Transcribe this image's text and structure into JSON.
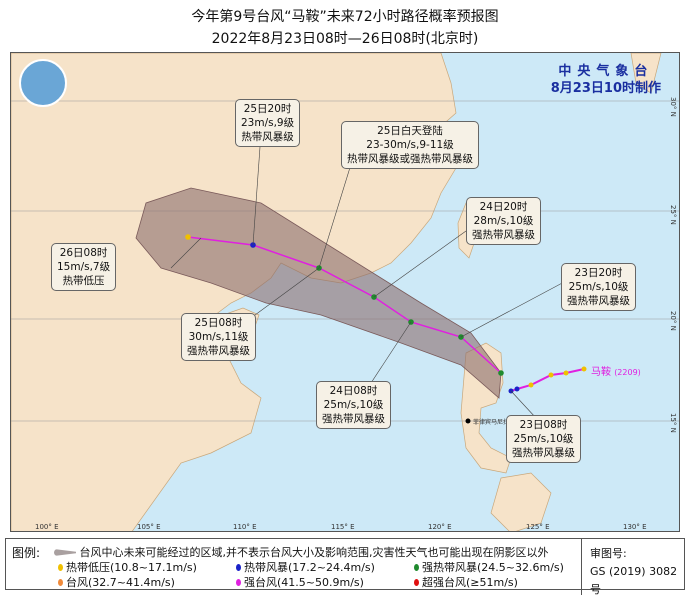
{
  "title": "今年第9号台风“马鞍”未来72小时路径概率预报图",
  "subtitle": "2022年8月23日08时—26日08时(北京时)",
  "agency": {
    "name": "中央气象台",
    "issued": "8月23日10时制作"
  },
  "storm": {
    "name": "马鞍",
    "id": "(2209)"
  },
  "axes": {
    "lon": [
      "100° E",
      "105° E",
      "110° E",
      "115° E",
      "120° E",
      "125° E",
      "130° E"
    ],
    "lat": [
      "30° N",
      "25° N",
      "20° N",
      "15° N"
    ]
  },
  "forecast_points": [
    {
      "time": "23日08时",
      "wind": "25m/s,10级",
      "category": "强热带风暴级",
      "color": "#1f8a2e"
    },
    {
      "time": "23日20时",
      "wind": "25m/s,10级",
      "category": "强热带风暴级",
      "color": "#1f8a2e"
    },
    {
      "time": "24日08时",
      "wind": "25m/s,10级",
      "category": "强热带风暴级",
      "color": "#1f8a2e"
    },
    {
      "time": "24日20时",
      "wind": "28m/s,10级",
      "category": "强热带风暴级",
      "color": "#1f8a2e"
    },
    {
      "time": "25日08时",
      "wind": "30m/s,11级",
      "category": "强热带风暴级",
      "color": "#1f8a2e"
    },
    {
      "time": "25日20时",
      "wind": "23m/s,9级",
      "category": "热带风暴级",
      "color": "#1a22c8"
    },
    {
      "time": "26日08时",
      "wind": "15m/s,7级",
      "category": "热带低压",
      "color": "#f0c000"
    }
  ],
  "landfall": {
    "time": "25日白天登陆",
    "wind": "23-30m/s,9-11级",
    "category": "热带风暴级或强热带风暴级"
  },
  "city": "菲律宾马尼拉",
  "legend": {
    "head": "图例:",
    "cone": "台风中心未来可能经过的区域,并不表示台风大小及影响范围,灾害性天气也可能出现在阴影区以外",
    "items": [
      {
        "label": "热带低压(10.8~17.1m/s)",
        "color": "#f0c000"
      },
      {
        "label": "热带风暴(17.2~24.4m/s)",
        "color": "#1a22c8"
      },
      {
        "label": "强热带风暴(24.5~32.6m/s)",
        "color": "#1f8a2e"
      },
      {
        "label": "台风(32.7~41.4m/s)",
        "color": "#f08a3a"
      },
      {
        "label": "强台风(41.5~50.9m/s)",
        "color": "#e020e0"
      },
      {
        "label": "超强台风(≥51m/s)",
        "color": "#e01010"
      }
    ],
    "approval_label": "审图号:",
    "approval_no": "GS (2019) 3082号"
  }
}
